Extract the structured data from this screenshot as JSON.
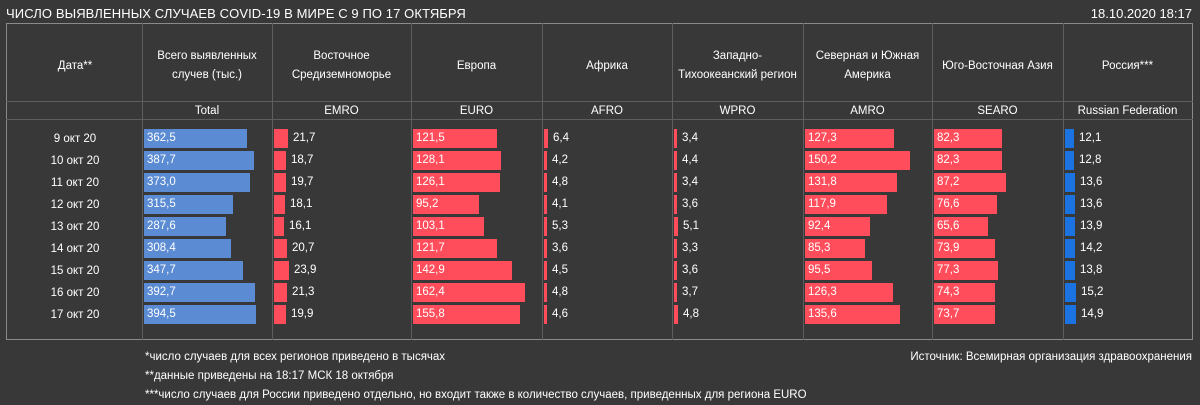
{
  "header": {
    "title": "ЧИСЛО ВЫЯВЛЕННЫХ СЛУЧАЕВ COVID-19 В МИРЕ С 9 ПО 17 ОКТЯБРЯ",
    "datetime": "18.10.2020 18:17"
  },
  "colors": {
    "total_bar": "#5b8bd2",
    "region_bar": "#ff4d5b",
    "russia_bar": "#1a73e0",
    "background": "#383838"
  },
  "chart_data": {
    "type": "table",
    "date_header": "Дата**",
    "dates": [
      "9 окт 20",
      "10 окт 20",
      "11 окт 20",
      "12 окт 20",
      "13 окт 20",
      "14 окт 20",
      "15 окт 20",
      "16 окт 20",
      "17 окт 20"
    ],
    "series": [
      {
        "name": "Всего выявленных\nслучев (тыс.)",
        "code": "Total",
        "values": [
          362.5,
          387.7,
          373.0,
          315.5,
          287.6,
          308.4,
          347.7,
          392.7,
          394.5
        ],
        "labels": [
          "362,5",
          "387,7",
          "373,0",
          "315,5",
          "287,6",
          "308,4",
          "347,7",
          "392,7",
          "394,5"
        ]
      },
      {
        "name": "Восточное\nСредиземноморье",
        "code": "EMRO",
        "values": [
          21.7,
          18.7,
          19.7,
          18.1,
          16.1,
          20.7,
          23.9,
          21.3,
          19.9
        ],
        "labels": [
          "21,7",
          "18,7",
          "19,7",
          "18,1",
          "16,1",
          "20,7",
          "23,9",
          "21,3",
          "19,9"
        ]
      },
      {
        "name": "Европа",
        "code": "EURO",
        "values": [
          121.5,
          128.1,
          126.1,
          95.2,
          103.1,
          121.7,
          142.9,
          162.4,
          155.8
        ],
        "labels": [
          "121,5",
          "128,1",
          "126,1",
          "95,2",
          "103,1",
          "121,7",
          "142,9",
          "162,4",
          "155,8"
        ]
      },
      {
        "name": "Африка",
        "code": "AFRO",
        "values": [
          6.4,
          4.2,
          4.8,
          4.1,
          5.3,
          3.6,
          4.5,
          4.8,
          4.6
        ],
        "labels": [
          "6,4",
          "4,2",
          "4,8",
          "4,1",
          "5,3",
          "3,6",
          "4,5",
          "4,8",
          "4,6"
        ]
      },
      {
        "name": "Западно-\nТихоокеанский регион",
        "code": "WPRO",
        "values": [
          3.4,
          4.4,
          3.4,
          3.6,
          5.1,
          3.3,
          3.6,
          3.7,
          4.8
        ],
        "labels": [
          "3,4",
          "4,4",
          "3,4",
          "3,6",
          "5,1",
          "3,3",
          "3,6",
          "3,7",
          "4,8"
        ]
      },
      {
        "name": "Северная и Южная\nАмерика",
        "code": "AMRO",
        "values": [
          127.3,
          150.2,
          131.8,
          117.9,
          92.4,
          85.3,
          95.5,
          126.3,
          135.6
        ],
        "labels": [
          "127,3",
          "150,2",
          "131,8",
          "117,9",
          "92,4",
          "85,3",
          "95,5",
          "126,3",
          "135,6"
        ]
      },
      {
        "name": "Юго-Восточная Азия",
        "code": "SEARO",
        "values": [
          82.3,
          82.3,
          87.2,
          76.6,
          65.6,
          73.9,
          77.3,
          74.3,
          73.7
        ],
        "labels": [
          "82,3",
          "82,3",
          "87,2",
          "76,6",
          "65,6",
          "73,9",
          "77,3",
          "74,3",
          "73,7"
        ]
      },
      {
        "name": "Россия***",
        "code": "Russian Federation",
        "values": [
          12.1,
          12.8,
          13.6,
          13.6,
          13.9,
          14.2,
          13.8,
          15.2,
          14.9
        ],
        "labels": [
          "12,1",
          "12,8",
          "13,6",
          "13,6",
          "13,9",
          "14,2",
          "13,8",
          "15,2",
          "14,9"
        ]
      }
    ]
  },
  "footnotes": [
    "*число случаев для всех регионов приведено в тысячах",
    "**данные приведены на 18:17 МСК 18 октября",
    "***число случаев для России приведено отдельно, но входит также в количество случаев, приведенных для региона EURO"
  ],
  "source": "Источник: Всемирная организация здравоохранения"
}
